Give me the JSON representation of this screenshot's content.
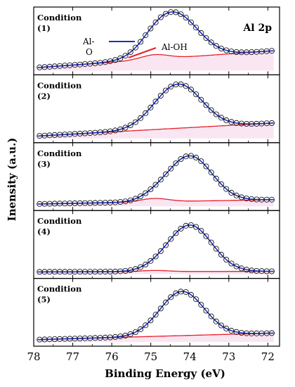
{
  "chart_data": {
    "type": "line",
    "corner_label": "Al 2p",
    "xlabel": "Binding Energy (eV)",
    "ylabel": "Inensity (a.u.)",
    "xlim": [
      78,
      71.7
    ],
    "x_ticks": [
      78,
      77,
      76,
      75,
      74,
      73,
      72
    ],
    "legend": [
      {
        "label": "Al-O",
        "color": "#1f2fbf"
      },
      {
        "label": "Al-OH",
        "color": "#e8202a"
      }
    ],
    "colors": {
      "fit": "#1f2fbf",
      "background": "#e8202a",
      "points": "#000000",
      "shade": "#f3c8e4"
    },
    "panels": [
      {
        "label": "Condition (1)",
        "peak_center": 74.4,
        "peak_height": 0.78,
        "peak_width": 0.85,
        "bg_start": 0.05,
        "bg_end": 0.36,
        "hump": 0.08
      },
      {
        "label": "Condition (2)",
        "peak_center": 74.3,
        "peak_height": 0.78,
        "peak_width": 0.85,
        "bg_start": 0.04,
        "bg_end": 0.28,
        "hump": 0.0
      },
      {
        "label": "Condition (3)",
        "peak_center": 74.0,
        "peak_height": 0.8,
        "peak_width": 0.8,
        "bg_start": 0.04,
        "bg_end": 0.12,
        "hump": 0.06
      },
      {
        "label": "Condition (4)",
        "peak_center": 74.0,
        "peak_height": 0.82,
        "peak_width": 0.8,
        "bg_start": 0.04,
        "bg_end": 0.05,
        "hump": 0.02
      },
      {
        "label": "Condition (5)",
        "peak_center": 74.2,
        "peak_height": 0.78,
        "peak_width": 0.8,
        "bg_start": 0.04,
        "bg_end": 0.16,
        "hump": 0.0
      }
    ]
  }
}
